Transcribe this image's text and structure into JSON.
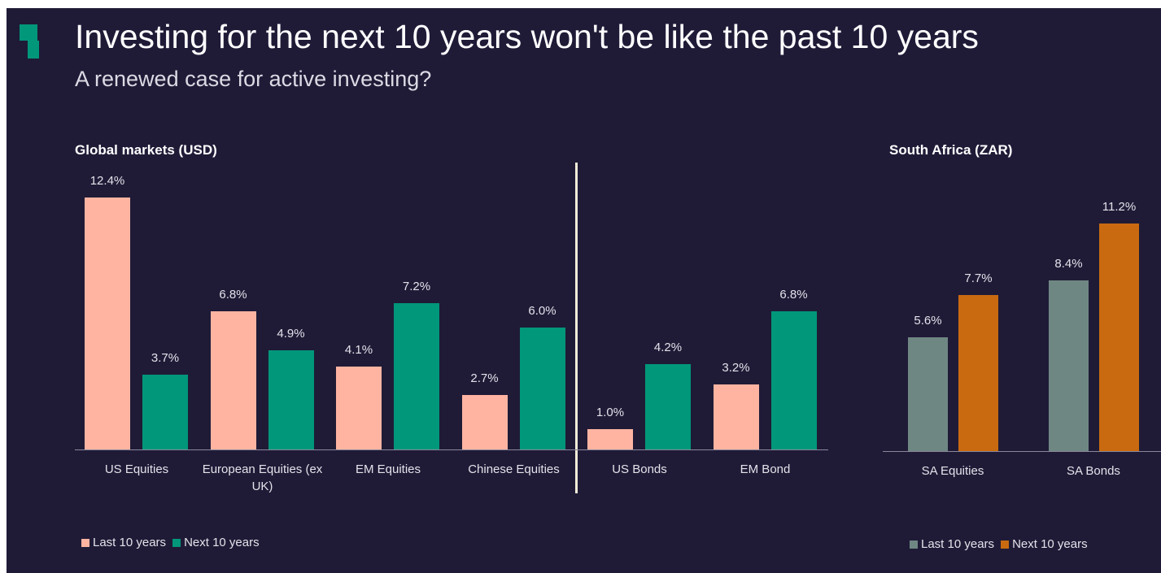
{
  "title": "Investing for the next 10 years won't be like the past 10 years",
  "subtitle": "A renewed case for active investing?",
  "chart_data": [
    {
      "type": "bar",
      "title": "Global markets (USD)",
      "categories": [
        "US Equities",
        "European Equities (ex UK)",
        "EM Equities",
        "Chinese Equities",
        "US Bonds",
        "EM Bond"
      ],
      "series": [
        {
          "name": "Last 10 years",
          "color": "#ffb4a2",
          "values": [
            12.4,
            6.8,
            4.1,
            2.7,
            1.0,
            3.2
          ],
          "value_labels": [
            "12.4%",
            "6.8%",
            "4.1%",
            "2.7%",
            "1.0%",
            "3.2%"
          ]
        },
        {
          "name": "Next 10 years",
          "color": "#00977a",
          "values": [
            3.7,
            4.9,
            7.2,
            6.0,
            4.2,
            6.8
          ],
          "value_labels": [
            "3.7%",
            "4.9%",
            "7.2%",
            "6.0%",
            "4.2%",
            "6.8%"
          ]
        }
      ],
      "legend": "bottom-left"
    },
    {
      "type": "bar",
      "title": "South Africa (ZAR)",
      "categories": [
        "SA Equities",
        "SA Bonds"
      ],
      "series": [
        {
          "name": "Last 10 years",
          "color": "#6f8783",
          "values": [
            5.6,
            8.4
          ],
          "value_labels": [
            "5.6%",
            "8.4%"
          ]
        },
        {
          "name": "Next 10 years",
          "color": "#c96a10",
          "values": [
            7.7,
            11.2
          ],
          "value_labels": [
            "7.7%",
            "11.2%"
          ]
        }
      ],
      "legend": "bottom-left"
    }
  ]
}
